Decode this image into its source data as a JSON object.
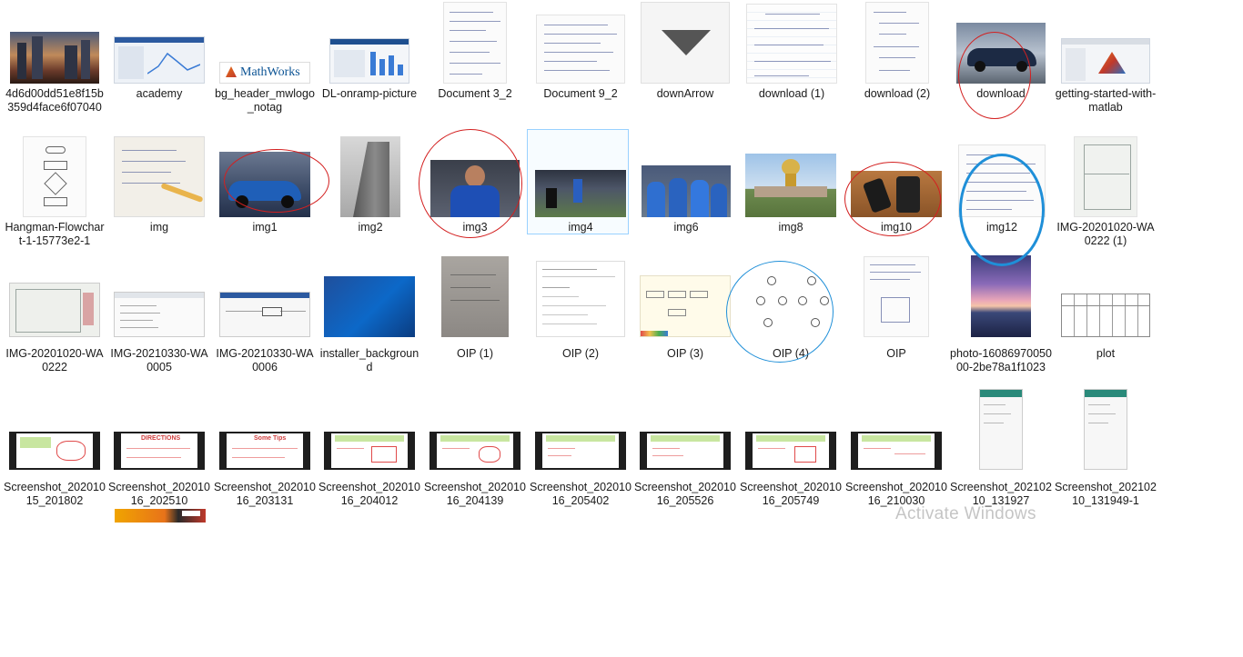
{
  "files": {
    "row1": [
      {
        "name": "4d6d00dd51e8f15b359d4face6f07040",
        "icon": "city-night-photo"
      },
      {
        "name": "academy",
        "icon": "matlab-academy-screenshot"
      },
      {
        "name": "bg_header_mwlogo_notag",
        "icon": "mathworks-logo"
      },
      {
        "name": "DL-onramp-picture",
        "icon": "dashboard-screenshot"
      },
      {
        "name": "Document 3_2",
        "icon": "handwritten-notes"
      },
      {
        "name": "Document 9_2",
        "icon": "handwritten-notes"
      },
      {
        "name": "downArrow",
        "icon": "down-arrow-image"
      },
      {
        "name": "download (1)",
        "icon": "handwritten-notes"
      },
      {
        "name": "download (2)",
        "icon": "handwritten-notes"
      },
      {
        "name": "download",
        "icon": "sports-car-photo"
      },
      {
        "name": "getting-started-with-matlab",
        "icon": "matlab-screenshot"
      }
    ],
    "row2": [
      {
        "name": "Hangman-Flowchart-1-15773e2-1",
        "icon": "flowchart-image"
      },
      {
        "name": "img",
        "icon": "handwritten-notes-photo"
      },
      {
        "name": "img1",
        "icon": "blue-car-photo"
      },
      {
        "name": "img2",
        "icon": "building-photo"
      },
      {
        "name": "img3",
        "icon": "cricketer-photo"
      },
      {
        "name": "img4",
        "icon": "cricket-match-photo"
      },
      {
        "name": "img6",
        "icon": "cricket-team-photo"
      },
      {
        "name": "img8",
        "icon": "world-cup-trophy-photo"
      },
      {
        "name": "img10",
        "icon": "phones-photo"
      },
      {
        "name": "img12",
        "icon": "handwritten-letter"
      },
      {
        "name": "IMG-20201020-WA0222 (1)",
        "icon": "blueprint-photo"
      }
    ],
    "row3": [
      {
        "name": "IMG-20201020-WA0222",
        "icon": "blueprint-photo"
      },
      {
        "name": "IMG-20210330-WA0005",
        "icon": "table-screenshot"
      },
      {
        "name": "IMG-20210330-WA0006",
        "icon": "simulink-screenshot"
      },
      {
        "name": "installer_background",
        "icon": "blue-gradient-image"
      },
      {
        "name": "OIP (1)",
        "icon": "grey-paper-photo"
      },
      {
        "name": "OIP (2)",
        "icon": "document-screenshot"
      },
      {
        "name": "OIP (3)",
        "icon": "diagram-image"
      },
      {
        "name": "OIP (4)",
        "icon": "tree-diagram-image"
      },
      {
        "name": "OIP",
        "icon": "handwritten-diagram"
      },
      {
        "name": "photo-1608697005000-2be78a1f1023",
        "icon": "sunset-photo"
      },
      {
        "name": "plot",
        "icon": "table-grid-image"
      }
    ],
    "row4": [
      {
        "name": "Screenshot_20201015_201802",
        "icon": "whiteboard-screenshot"
      },
      {
        "name": "Screenshot_20201016_202510",
        "icon": "whiteboard-screenshot"
      },
      {
        "name": "Screenshot_20201016_203131",
        "icon": "whiteboard-screenshot"
      },
      {
        "name": "Screenshot_20201016_204012",
        "icon": "whiteboard-screenshot"
      },
      {
        "name": "Screenshot_20201016_204139",
        "icon": "whiteboard-screenshot"
      },
      {
        "name": "Screenshot_20201016_205402",
        "icon": "whiteboard-screenshot"
      },
      {
        "name": "Screenshot_20201016_205526",
        "icon": "whiteboard-screenshot"
      },
      {
        "name": "Screenshot_20201016_205749",
        "icon": "whiteboard-screenshot"
      },
      {
        "name": "Screenshot_20201016_210030",
        "icon": "whiteboard-screenshot"
      },
      {
        "name": "Screenshot_20210210_131927",
        "icon": "phone-screenshot"
      },
      {
        "name": "Screenshot_20210210_131949-1",
        "icon": "phone-screenshot"
      }
    ]
  },
  "logos": {
    "mathworks": "MathWorks",
    "directions": "DIRECTIONS",
    "some_tips": "Some Tips"
  },
  "watermark": "Activate Windows",
  "colors": {
    "selection_border": "#99d1ff",
    "annotation_red": "#d32020",
    "annotation_blue": "#1f8fd8"
  }
}
